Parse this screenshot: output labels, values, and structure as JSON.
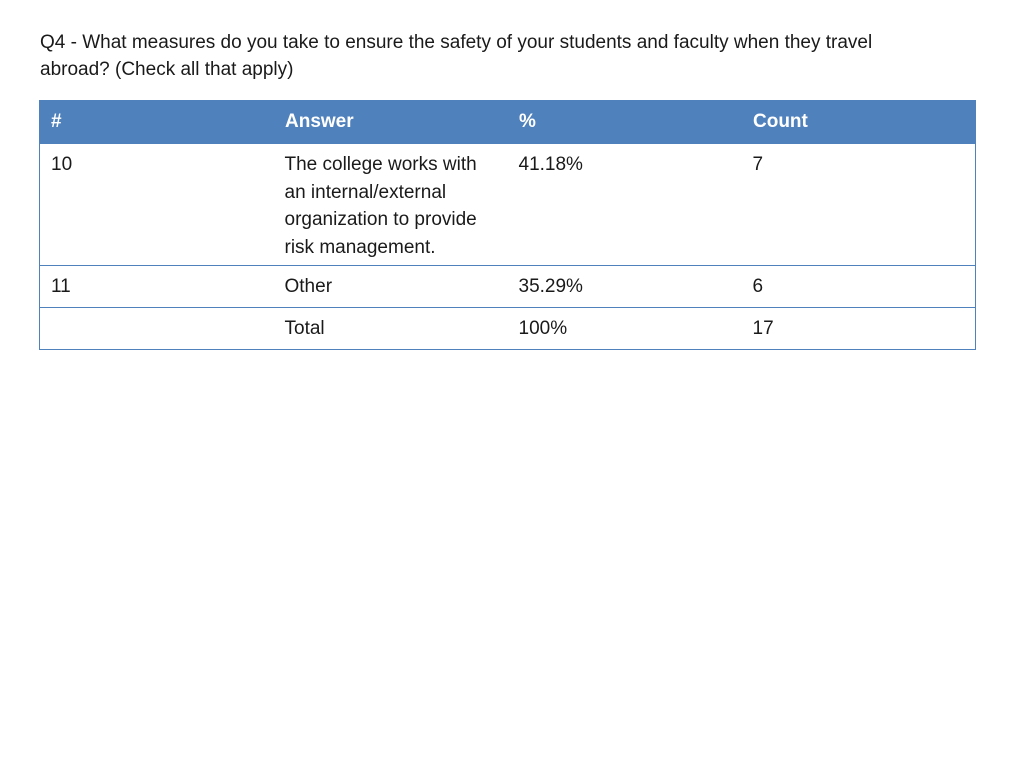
{
  "question": "Q4 - What measures do you take to ensure the safety of your students and faculty when they travel abroad? (Check all that apply)",
  "table": {
    "headers": [
      "#",
      "Answer",
      "%",
      "Count"
    ],
    "rows": [
      {
        "num": "10",
        "answer": "The college works with an internal/external organization to provide risk management.",
        "pct": "41.18%",
        "count": "7"
      },
      {
        "num": "11",
        "answer": "Other",
        "pct": "35.29%",
        "count": "6"
      },
      {
        "num": "",
        "answer": "Total",
        "pct": "100%",
        "count": "17"
      }
    ]
  },
  "colors": {
    "header_bg": "#4f81bd",
    "header_text": "#ffffff",
    "border": "#4f81bd"
  }
}
